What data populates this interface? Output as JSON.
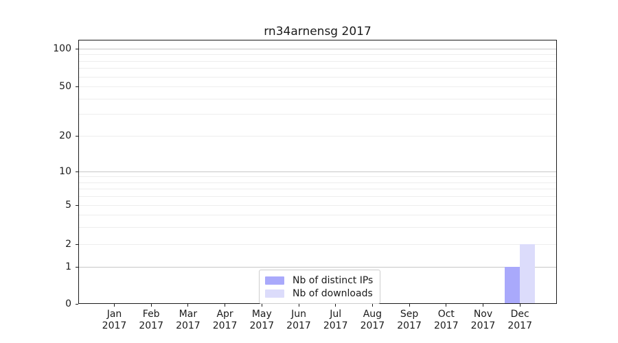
{
  "chart_data": {
    "type": "bar",
    "title": "rn34arnensg 2017",
    "x": {
      "categories": [
        "Jan",
        "Feb",
        "Mar",
        "Apr",
        "May",
        "Jun",
        "Jul",
        "Aug",
        "Sep",
        "Oct",
        "Nov",
        "Dec"
      ],
      "year": "2017"
    },
    "series": [
      {
        "name": "Nb of distinct IPs",
        "color": "#a9a9fb",
        "values": [
          0,
          0,
          0,
          0,
          0,
          0,
          0,
          0,
          0,
          0,
          0,
          1
        ]
      },
      {
        "name": "Nb of downloads",
        "color": "#dcdcfb",
        "values": [
          0,
          0,
          0,
          0,
          0,
          0,
          0,
          0,
          0,
          0,
          0,
          2
        ]
      }
    ],
    "y_axis": {
      "scale": "symlog",
      "ticks": [
        0,
        1,
        2,
        5,
        10,
        20,
        50,
        100
      ],
      "minor_gridlines": [
        3,
        4,
        6,
        7,
        8,
        9,
        30,
        40,
        60,
        70,
        80,
        90
      ],
      "ylim": [
        0,
        118
      ]
    },
    "legend": {
      "position": "lower-center"
    },
    "grid": true,
    "xlabel": "",
    "ylabel": ""
  },
  "colors": {
    "background": "#ffffff",
    "axis": "#1a1a1a",
    "text": "#1a1a1a",
    "grid_major": "#c6c6c6",
    "grid_minor": "#ededed",
    "legend_border": "#cccccc"
  }
}
